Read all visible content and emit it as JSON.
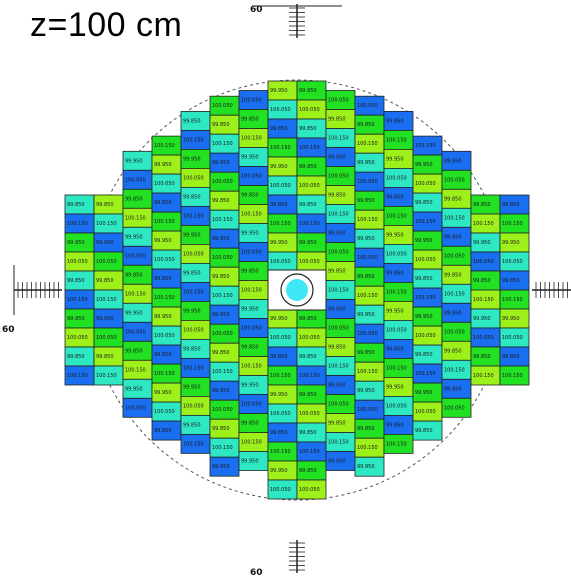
{
  "title": "z=100 cm",
  "axis_labels": {
    "top": "60",
    "bottom": "60",
    "left": "60"
  },
  "cell_values": [
    "100.150",
    "99.950",
    "100.050",
    "99.850"
  ],
  "colors": {
    "blue": "#1a6ef0",
    "teal": "#2ee8c4",
    "green": "#22e022",
    "lime": "#9ef01a",
    "center_disc": "#3fe8f5",
    "grid_line": "#222222"
  }
}
